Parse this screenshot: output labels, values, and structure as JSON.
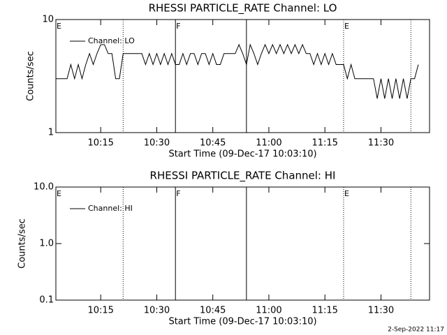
{
  "chart_data": [
    {
      "type": "line",
      "title": "RHESSI PARTICLE_RATE Channel: LO",
      "xlabel": "Start Time (09-Dec-17 10:03:10)",
      "ylabel": "Counts/sec",
      "log_y": true,
      "ylim": [
        1,
        10
      ],
      "yticks": [
        1,
        10
      ],
      "xlim": [
        "10:03",
        "11:43"
      ],
      "xticks": [
        "10:15",
        "10:30",
        "10:45",
        "11:00",
        "11:15",
        "11:30"
      ],
      "legend": "upper left",
      "x": [
        "10:03",
        "10:04",
        "10:05",
        "10:06",
        "10:07",
        "10:08",
        "10:09",
        "10:10",
        "10:11",
        "10:12",
        "10:13",
        "10:14",
        "10:15",
        "10:16",
        "10:17",
        "10:18",
        "10:19",
        "10:20",
        "10:21",
        "10:22",
        "10:23",
        "10:24",
        "10:25",
        "10:26",
        "10:27",
        "10:28",
        "10:29",
        "10:30",
        "10:31",
        "10:32",
        "10:33",
        "10:34",
        "10:35",
        "10:36",
        "10:37",
        "10:38",
        "10:39",
        "10:40",
        "10:41",
        "10:42",
        "10:43",
        "10:44",
        "10:45",
        "10:46",
        "10:47",
        "10:48",
        "10:49",
        "10:50",
        "10:51",
        "10:52",
        "10:53",
        "10:54",
        "10:55",
        "10:56",
        "10:57",
        "10:58",
        "10:59",
        "11:00",
        "11:01",
        "11:02",
        "11:03",
        "11:04",
        "11:05",
        "11:06",
        "11:07",
        "11:08",
        "11:09",
        "11:10",
        "11:11",
        "11:12",
        "11:13",
        "11:14",
        "11:15",
        "11:16",
        "11:17",
        "11:18",
        "11:19",
        "11:20",
        "11:21",
        "11:22",
        "11:23",
        "11:24",
        "11:25",
        "11:26",
        "11:27",
        "11:28",
        "11:29",
        "11:30",
        "11:31",
        "11:32",
        "11:33",
        "11:34",
        "11:35",
        "11:36",
        "11:37",
        "11:38",
        "11:39",
        "11:40"
      ],
      "series": [
        {
          "name": "Channel: LO",
          "color": "#000000",
          "values": [
            3,
            3,
            3,
            3,
            4,
            3,
            4,
            3,
            4,
            5,
            4,
            5,
            6,
            6,
            5,
            5,
            3,
            3,
            5,
            5,
            5,
            5,
            5,
            5,
            4,
            5,
            4,
            5,
            4,
            5,
            4,
            5,
            4,
            4,
            5,
            4,
            5,
            5,
            4,
            5,
            5,
            4,
            5,
            4,
            4,
            5,
            5,
            5,
            5,
            6,
            5,
            4,
            6,
            5,
            4,
            5,
            6,
            5,
            6,
            5,
            6,
            5,
            6,
            5,
            6,
            5,
            6,
            5,
            5,
            4,
            5,
            4,
            5,
            4,
            5,
            4,
            4,
            4,
            3,
            4,
            3,
            3,
            3,
            3,
            3,
            3,
            2,
            3,
            2,
            3,
            2,
            3,
            2,
            3,
            2,
            3,
            3,
            4
          ]
        }
      ],
      "markers": [
        {
          "x": "10:21",
          "style": "dotted"
        },
        {
          "x": "10:35",
          "style": "solid"
        },
        {
          "x": "10:54",
          "style": "solid"
        },
        {
          "x": "11:20",
          "style": "dotted"
        },
        {
          "x": "11:38",
          "style": "dotted"
        }
      ],
      "annotations": [
        {
          "x": "10:03",
          "label": "E"
        },
        {
          "x": "10:35",
          "label": "F"
        },
        {
          "x": "11:20",
          "label": "E"
        }
      ]
    },
    {
      "type": "line",
      "title": "RHESSI PARTICLE_RATE Channel: HI",
      "xlabel": "Start Time (09-Dec-17 10:03:10)",
      "ylabel": "Counts/sec",
      "log_y": true,
      "ylim": [
        0.1,
        10
      ],
      "yticks": [
        0.1,
        {
          "value": 1,
          "label": "1.0"
        },
        {
          "value": 10,
          "label": "10.0"
        }
      ],
      "xlim": [
        "10:03",
        "11:43"
      ],
      "xticks": [
        "10:15",
        "10:30",
        "10:45",
        "11:00",
        "11:15",
        "11:30"
      ],
      "legend": "upper left",
      "x": [],
      "series": [
        {
          "name": "Channel: HI",
          "color": "#000000",
          "values": []
        }
      ],
      "markers": [
        {
          "x": "10:21",
          "style": "dotted"
        },
        {
          "x": "10:35",
          "style": "solid"
        },
        {
          "x": "10:54",
          "style": "solid"
        },
        {
          "x": "11:20",
          "style": "dotted"
        },
        {
          "x": "11:38",
          "style": "dotted"
        }
      ],
      "annotations": [
        {
          "x": "10:03",
          "label": "E"
        },
        {
          "x": "10:35",
          "label": "F"
        },
        {
          "x": "11:20",
          "label": "E"
        }
      ]
    }
  ],
  "footer": "2-Sep-2022 11:17"
}
